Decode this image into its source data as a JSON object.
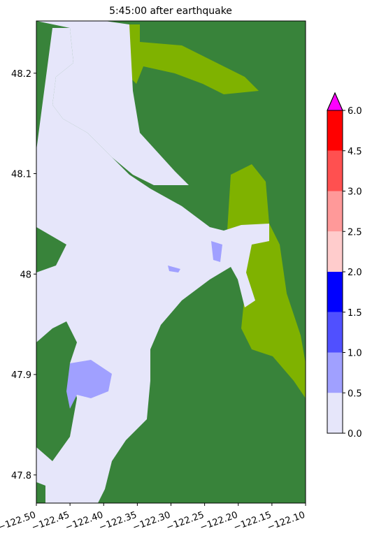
{
  "chart_data": {
    "type": "map",
    "title": "5:45:00 after earthquake",
    "xlim": [
      -122.5,
      -122.1
    ],
    "xticks": [
      {
        "value": -122.5,
        "label": "−122.50"
      },
      {
        "value": -122.45,
        "label": "−122.45"
      },
      {
        "value": -122.4,
        "label": "−122.40"
      },
      {
        "value": -122.35,
        "label": "−122.35"
      },
      {
        "value": -122.3,
        "label": "−122.30"
      },
      {
        "value": -122.25,
        "label": "−122.25"
      },
      {
        "value": -122.2,
        "label": "−122.20"
      },
      {
        "value": -122.15,
        "label": "−122.15"
      },
      {
        "value": -122.1,
        "label": "−122.10"
      }
    ],
    "ylim": [
      47.772,
      48.252
    ],
    "yticks": [
      47.8,
      47.9,
      48.0,
      48.1,
      48.2
    ],
    "colorbar": {
      "ticks": [
        {
          "value": 0,
          "label": "0.0"
        },
        0.5,
        {
          "value": 1,
          "label": "1.0"
        },
        1.5,
        {
          "value": 2,
          "label": "2.0"
        },
        2.5,
        {
          "value": 3,
          "label": "3.0"
        },
        4.5,
        {
          "value": 6,
          "label": "6.0"
        }
      ],
      "colors": [
        "#e6e6fa",
        "#a0a0ff",
        "#5050ff",
        "#0000ff",
        "#ffcccc",
        "#ff9999",
        "#ff5050",
        "#ff0000"
      ],
      "extend_color": "#ff00ff"
    }
  }
}
